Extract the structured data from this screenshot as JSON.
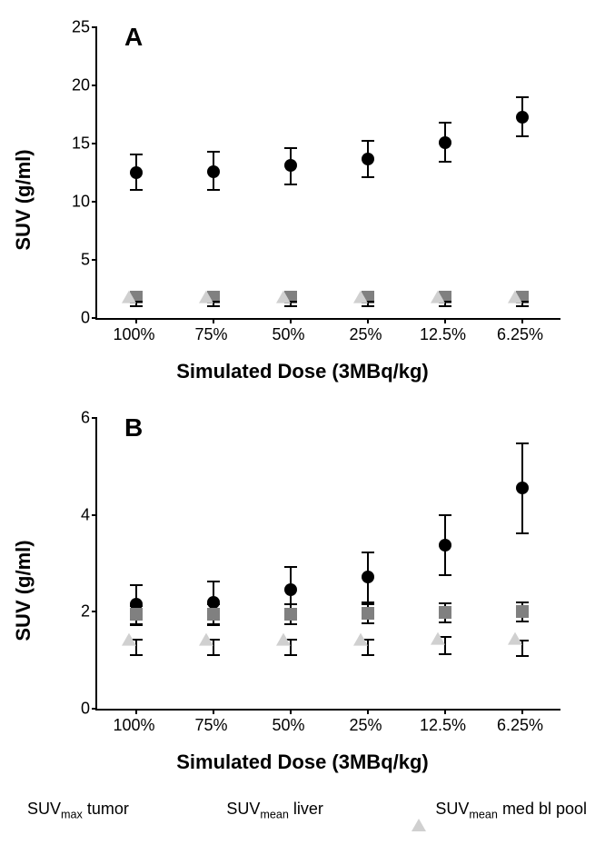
{
  "panelA": {
    "letter": "A",
    "type": "scatter-errorbar",
    "ylabel": "SUV (g/ml)",
    "xlabel": "Simulated Dose (3MBq/kg)",
    "ylim": [
      0,
      25
    ],
    "yticks": [
      0,
      5,
      10,
      15,
      20,
      25
    ],
    "categories": [
      "100%",
      "75%",
      "50%",
      "25%",
      "12.5%",
      "6.25%"
    ],
    "label_fontsize": 22,
    "tick_fontsize": 18,
    "letter_fontsize": 28,
    "background_color": "#ffffff",
    "axis_color": "#000000",
    "series": [
      {
        "name": "suvmax-tumor",
        "marker": "circle",
        "color": "#000000",
        "errorbar_color": "#000000",
        "marker_size": 14,
        "cap_width": 14,
        "line_width": 2,
        "points": [
          {
            "y": 12.5,
            "lo": 11.0,
            "hi": 14.1
          },
          {
            "y": 12.6,
            "lo": 11.0,
            "hi": 14.3
          },
          {
            "y": 13.1,
            "lo": 11.5,
            "hi": 14.6
          },
          {
            "y": 13.7,
            "lo": 12.1,
            "hi": 15.2
          },
          {
            "y": 15.1,
            "lo": 13.4,
            "hi": 16.8
          },
          {
            "y": 17.3,
            "lo": 15.6,
            "hi": 19.0
          }
        ]
      },
      {
        "name": "suvmean-liver",
        "marker": "square",
        "color": "#808080",
        "errorbar_color": "#000000",
        "marker_size": 14,
        "cap_width": 14,
        "line_width": 2,
        "points": [
          {
            "y": 1.8,
            "lo": 1.6,
            "hi": 2.0
          },
          {
            "y": 1.8,
            "lo": 1.6,
            "hi": 2.0
          },
          {
            "y": 1.8,
            "lo": 1.6,
            "hi": 2.0
          },
          {
            "y": 1.8,
            "lo": 1.6,
            "hi": 2.0
          },
          {
            "y": 1.8,
            "lo": 1.6,
            "hi": 2.0
          },
          {
            "y": 1.8,
            "lo": 1.6,
            "hi": 2.0
          }
        ]
      },
      {
        "name": "suvmean-blood",
        "marker": "triangle",
        "color": "#d0d0d0",
        "errorbar_color": "#000000",
        "marker_size": 14,
        "cap_width": 14,
        "line_width": 2,
        "points": [
          {
            "y": 1.2,
            "lo": 1.0,
            "hi": 1.4
          },
          {
            "y": 1.2,
            "lo": 1.0,
            "hi": 1.4
          },
          {
            "y": 1.2,
            "lo": 1.0,
            "hi": 1.4
          },
          {
            "y": 1.2,
            "lo": 1.0,
            "hi": 1.4
          },
          {
            "y": 1.2,
            "lo": 1.0,
            "hi": 1.4
          },
          {
            "y": 1.2,
            "lo": 1.0,
            "hi": 1.4
          }
        ]
      }
    ]
  },
  "panelB": {
    "letter": "B",
    "type": "scatter-errorbar",
    "ylabel": "SUV (g/ml)",
    "xlabel": "Simulated Dose (3MBq/kg)",
    "ylim": [
      0,
      6
    ],
    "yticks": [
      0,
      2,
      4,
      6
    ],
    "categories": [
      "100%",
      "75%",
      "50%",
      "25%",
      "12.5%",
      "6.25%"
    ],
    "label_fontsize": 22,
    "tick_fontsize": 18,
    "letter_fontsize": 28,
    "background_color": "#ffffff",
    "axis_color": "#000000",
    "series": [
      {
        "name": "suvmax-tumor",
        "marker": "circle",
        "color": "#000000",
        "errorbar_color": "#000000",
        "marker_size": 14,
        "cap_width": 14,
        "line_width": 2,
        "points": [
          {
            "y": 2.15,
            "lo": 1.75,
            "hi": 2.55
          },
          {
            "y": 2.2,
            "lo": 1.75,
            "hi": 2.62
          },
          {
            "y": 2.45,
            "lo": 2.0,
            "hi": 2.92
          },
          {
            "y": 2.72,
            "lo": 2.2,
            "hi": 3.22
          },
          {
            "y": 3.38,
            "lo": 2.75,
            "hi": 4.0
          },
          {
            "y": 4.55,
            "lo": 3.62,
            "hi": 5.48
          }
        ]
      },
      {
        "name": "suvmean-liver",
        "marker": "square",
        "color": "#808080",
        "errorbar_color": "#000000",
        "marker_size": 14,
        "cap_width": 14,
        "line_width": 2,
        "points": [
          {
            "y": 1.95,
            "lo": 1.72,
            "hi": 2.12
          },
          {
            "y": 1.95,
            "lo": 1.72,
            "hi": 2.15
          },
          {
            "y": 1.95,
            "lo": 1.75,
            "hi": 2.15
          },
          {
            "y": 1.97,
            "lo": 1.77,
            "hi": 2.15
          },
          {
            "y": 1.98,
            "lo": 1.78,
            "hi": 2.18
          },
          {
            "y": 2.0,
            "lo": 1.8,
            "hi": 2.2
          }
        ]
      },
      {
        "name": "suvmean-blood",
        "marker": "triangle",
        "color": "#d0d0d0",
        "errorbar_color": "#000000",
        "marker_size": 14,
        "cap_width": 14,
        "line_width": 2,
        "points": [
          {
            "y": 1.28,
            "lo": 1.1,
            "hi": 1.43
          },
          {
            "y": 1.28,
            "lo": 1.1,
            "hi": 1.43
          },
          {
            "y": 1.28,
            "lo": 1.1,
            "hi": 1.43
          },
          {
            "y": 1.28,
            "lo": 1.1,
            "hi": 1.43
          },
          {
            "y": 1.3,
            "lo": 1.12,
            "hi": 1.48
          },
          {
            "y": 1.3,
            "lo": 1.08,
            "hi": 1.4
          }
        ]
      }
    ]
  },
  "legend": {
    "fontsize": 18,
    "items": [
      {
        "marker": "circle",
        "color": "#000000",
        "label_prefix": "SUV",
        "label_sub": "max",
        "label_suffix": " tumor"
      },
      {
        "marker": "square",
        "color": "#808080",
        "label_prefix": "SUV",
        "label_sub": "mean",
        "label_suffix": " liver"
      },
      {
        "marker": "triangle",
        "color": "#d0d0d0",
        "label_prefix": "SUV",
        "label_sub": "mean",
        "label_suffix": " med bl pool"
      }
    ]
  }
}
